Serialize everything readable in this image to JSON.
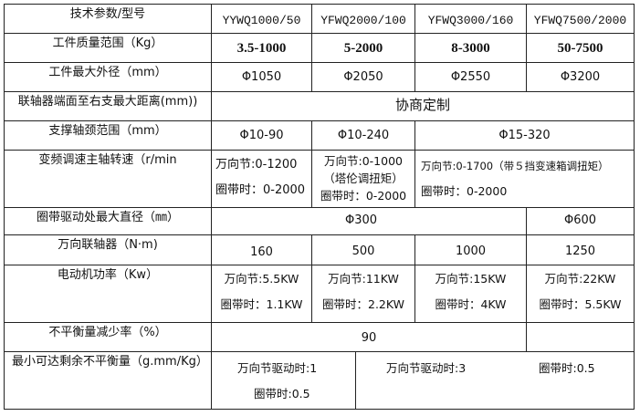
{
  "header": {
    "label": "技术参数/型号",
    "models": [
      "YYWQ1000/50",
      "YFWQ2000/100",
      "YFWQ3000/160",
      "YFWQ7500/2000"
    ]
  },
  "mass": {
    "label": "工件质量范围（Kg）",
    "values": [
      "3.5-1000",
      "5-2000",
      "8-3000",
      "50-7500"
    ]
  },
  "diameter": {
    "label": "工件最大外径（mm）",
    "values": [
      "Φ1050",
      "Φ2050",
      "Φ2550",
      "Φ3200"
    ]
  },
  "distance": {
    "label": "联轴器端面至右支最大距离(mm))",
    "value": "协商定制"
  },
  "journal": {
    "label": "支撑轴颈范围（mm）",
    "values": [
      "Φ10-90",
      "Φ10-240",
      "Φ15-320"
    ]
  },
  "speed": {
    "label": "变频调速主轴转速（r/min",
    "c1": [
      "万向节:0-1200",
      "圈带时：0-2000"
    ],
    "c2": [
      "万向节:0-1000",
      "（塔伦调扭矩）",
      "圈带时：0-2000"
    ],
    "c3": [
      "万向节:0-1700（带５挡变速箱调扭矩）",
      "圈带时：0-2000"
    ]
  },
  "belt": {
    "label": "圈带驱动处最大直径（㎜）",
    "values": [
      "Φ300",
      "Φ600"
    ]
  },
  "coupling": {
    "label": "万向联轴器（N·m)",
    "values": [
      "160",
      "500",
      "1000",
      "1250"
    ]
  },
  "power": {
    "label": "电动机功率（Kw）",
    "values": [
      [
        "万向节:5.5KW",
        "圈带时：1.1KW"
      ],
      [
        "万向节:11KW",
        "圈带时：2.2KW"
      ],
      [
        "万向节:15KW",
        "圈带时：4KW"
      ],
      [
        "万向节:22KW",
        "圈带时：5.5KW"
      ]
    ]
  },
  "reduction": {
    "label": "不平衡量减少率（%）",
    "value": "90"
  },
  "residual": {
    "label": "最小可达剩余不平衡量（g.mm/Kg）",
    "c1": [
      "万向节驱动时:1",
      "圈带时:0.5"
    ],
    "c2": [
      "万向节驱动时:3",
      "圈带时:0.5"
    ]
  }
}
